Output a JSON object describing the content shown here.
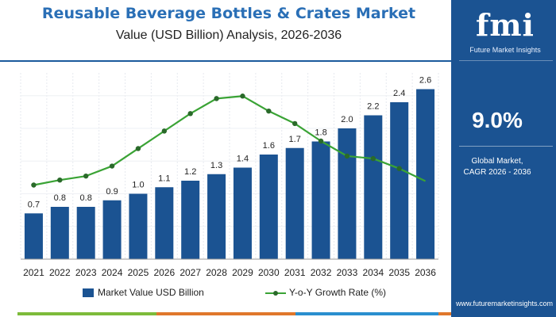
{
  "header": {
    "title": "Reusable Beverage Bottles & Crates Market",
    "subtitle": "Value (USD Billion) Analysis, 2026-2036"
  },
  "side_panel": {
    "logo_mark": "fmi",
    "logo_text": "Future Market Insights",
    "cagr_value": "9.0%",
    "cagr_label_line1": "Global Market,",
    "cagr_label_line2": "CAGR 2026 - 2036",
    "website": "www.futuremarketinsights.com"
  },
  "colors": {
    "title": "#2a6fb6",
    "bar": "#1b5392",
    "line": "#3aa335",
    "marker": "#2a6a2a",
    "panel": "#1b5392",
    "footer_strip": [
      "#7dbb3a",
      "#e0772b",
      "#2a8fcf",
      "#e0772b"
    ]
  },
  "chart_data": {
    "type": "bar",
    "categories": [
      "2021",
      "2022",
      "2023",
      "2024",
      "2025",
      "2026",
      "2027",
      "2028",
      "2029",
      "2030",
      "2031",
      "2032",
      "2033",
      "2034",
      "2035",
      "2036"
    ],
    "series": [
      {
        "name": "Market Value USD Billion",
        "type": "bar",
        "values": [
          0.7,
          0.8,
          0.8,
          0.9,
          1.0,
          1.1,
          1.2,
          1.3,
          1.4,
          1.6,
          1.7,
          1.8,
          2.0,
          2.2,
          2.4,
          2.6
        ],
        "labels": [
          "0.7",
          "0.8",
          "0.8",
          "0.9",
          "1.0",
          "1.1",
          "1.2",
          "1.3",
          "1.4",
          "1.6",
          "1.7",
          "1.8",
          "2.0",
          "2.2",
          "2.4",
          "2.6"
        ]
      },
      {
        "name": "Y-o-Y Growth Rate (%)",
        "type": "line",
        "values": [
          4.2,
          5.2,
          6.0,
          8.0,
          11.5,
          15.0,
          18.5,
          21.5,
          22.0,
          19.0,
          16.5,
          13.0,
          10.0,
          9.5,
          7.5,
          5.0
        ]
      }
    ],
    "ylim": [
      0,
      2.8
    ],
    "y2lim": [
      0,
      26
    ],
    "grid": true,
    "legend_position": "bottom"
  }
}
